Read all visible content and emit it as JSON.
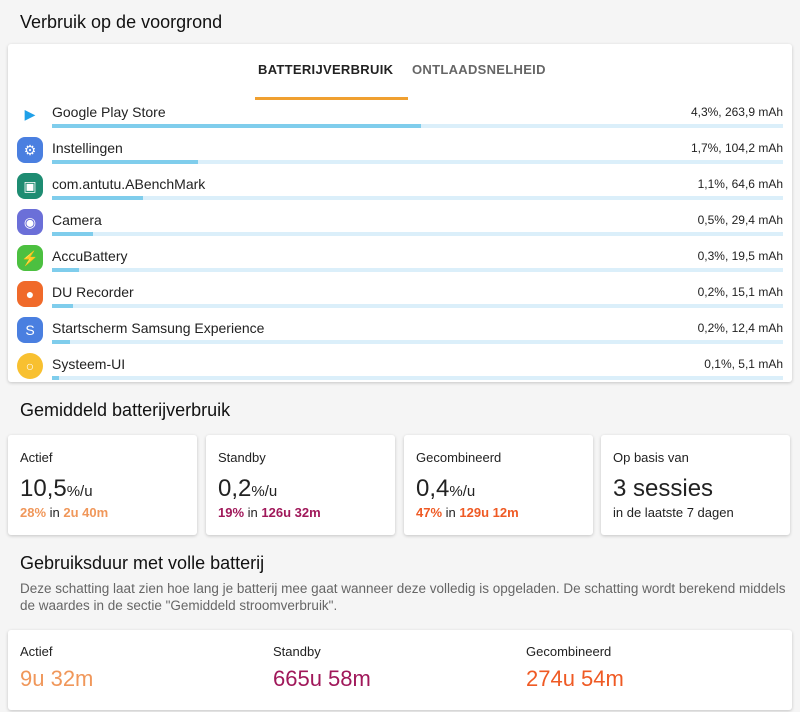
{
  "section1": {
    "title": "Verbruik op de voorgrond",
    "tabs": [
      "BATTERIJVERBRUIK",
      "ONTLAADSNELHEID"
    ],
    "apps": [
      {
        "name": "Google Play Store",
        "value": "4,3%, 263,9 mAh",
        "bar": 0.505,
        "icon": "play-store-icon",
        "color": "#ffffff"
      },
      {
        "name": "Instellingen",
        "value": "1,7%, 104,2 mAh",
        "bar": 0.2,
        "icon": "settings-icon",
        "color": "#4a7fe0"
      },
      {
        "name": "com.antutu.ABenchMark",
        "value": "1,1%, 64,6 mAh",
        "bar": 0.125,
        "icon": "android-icon",
        "color": "#1e8c72"
      },
      {
        "name": "Camera",
        "value": "0,5%, 29,4 mAh",
        "bar": 0.056,
        "icon": "camera-icon",
        "color": "#6b6fd8"
      },
      {
        "name": "AccuBattery",
        "value": "0,3%, 19,5 mAh",
        "bar": 0.037,
        "icon": "battery-icon",
        "color": "#4cc040"
      },
      {
        "name": "DU Recorder",
        "value": "0,2%, 15,1 mAh",
        "bar": 0.029,
        "icon": "recorder-icon",
        "color": "#f06a2a"
      },
      {
        "name": "Startscherm Samsung Experience",
        "value": "0,2%, 12,4 mAh",
        "bar": 0.024,
        "icon": "home-icon",
        "color": "#4a7fe0"
      },
      {
        "name": "Systeem-UI",
        "value": "0,1%, 5,1 mAh",
        "bar": 0.01,
        "icon": "system-ui-icon",
        "color": "#f8c030"
      }
    ]
  },
  "section2": {
    "title": "Gemiddeld batterijverbruik",
    "unit": "%/u",
    "in": " in ",
    "cards": [
      {
        "label": "Actief",
        "value": "10,5",
        "pct": "28%",
        "time": "2u 40m",
        "color": "#f0975a"
      },
      {
        "label": "Standby",
        "value": "0,2",
        "pct": "19%",
        "time": "126u 32m",
        "color": "#a0185a"
      },
      {
        "label": "Gecombineerd",
        "value": "0,4",
        "pct": "47%",
        "time": "129u 12m",
        "color": "#ef5a24"
      }
    ],
    "basis": {
      "label": "Op basis van",
      "value": "3 sessies",
      "sub": "in de laatste 7 dagen"
    }
  },
  "section3": {
    "title": "Gebruiksduur met volle batterij",
    "desc": "Deze schatting laat zien hoe lang je batterij mee gaat wanneer deze volledig is opgeladen. De schatting wordt berekend middels de waardes in de sectie \"Gemiddeld stroomverbruik\".",
    "items": [
      {
        "label": "Actief",
        "value": "9u 32m",
        "color": "#f0975a"
      },
      {
        "label": "Standby",
        "value": "665u 58m",
        "color": "#a0185a"
      },
      {
        "label": "Gecombineerd",
        "value": "274u 54m",
        "color": "#ef5a24"
      }
    ]
  }
}
